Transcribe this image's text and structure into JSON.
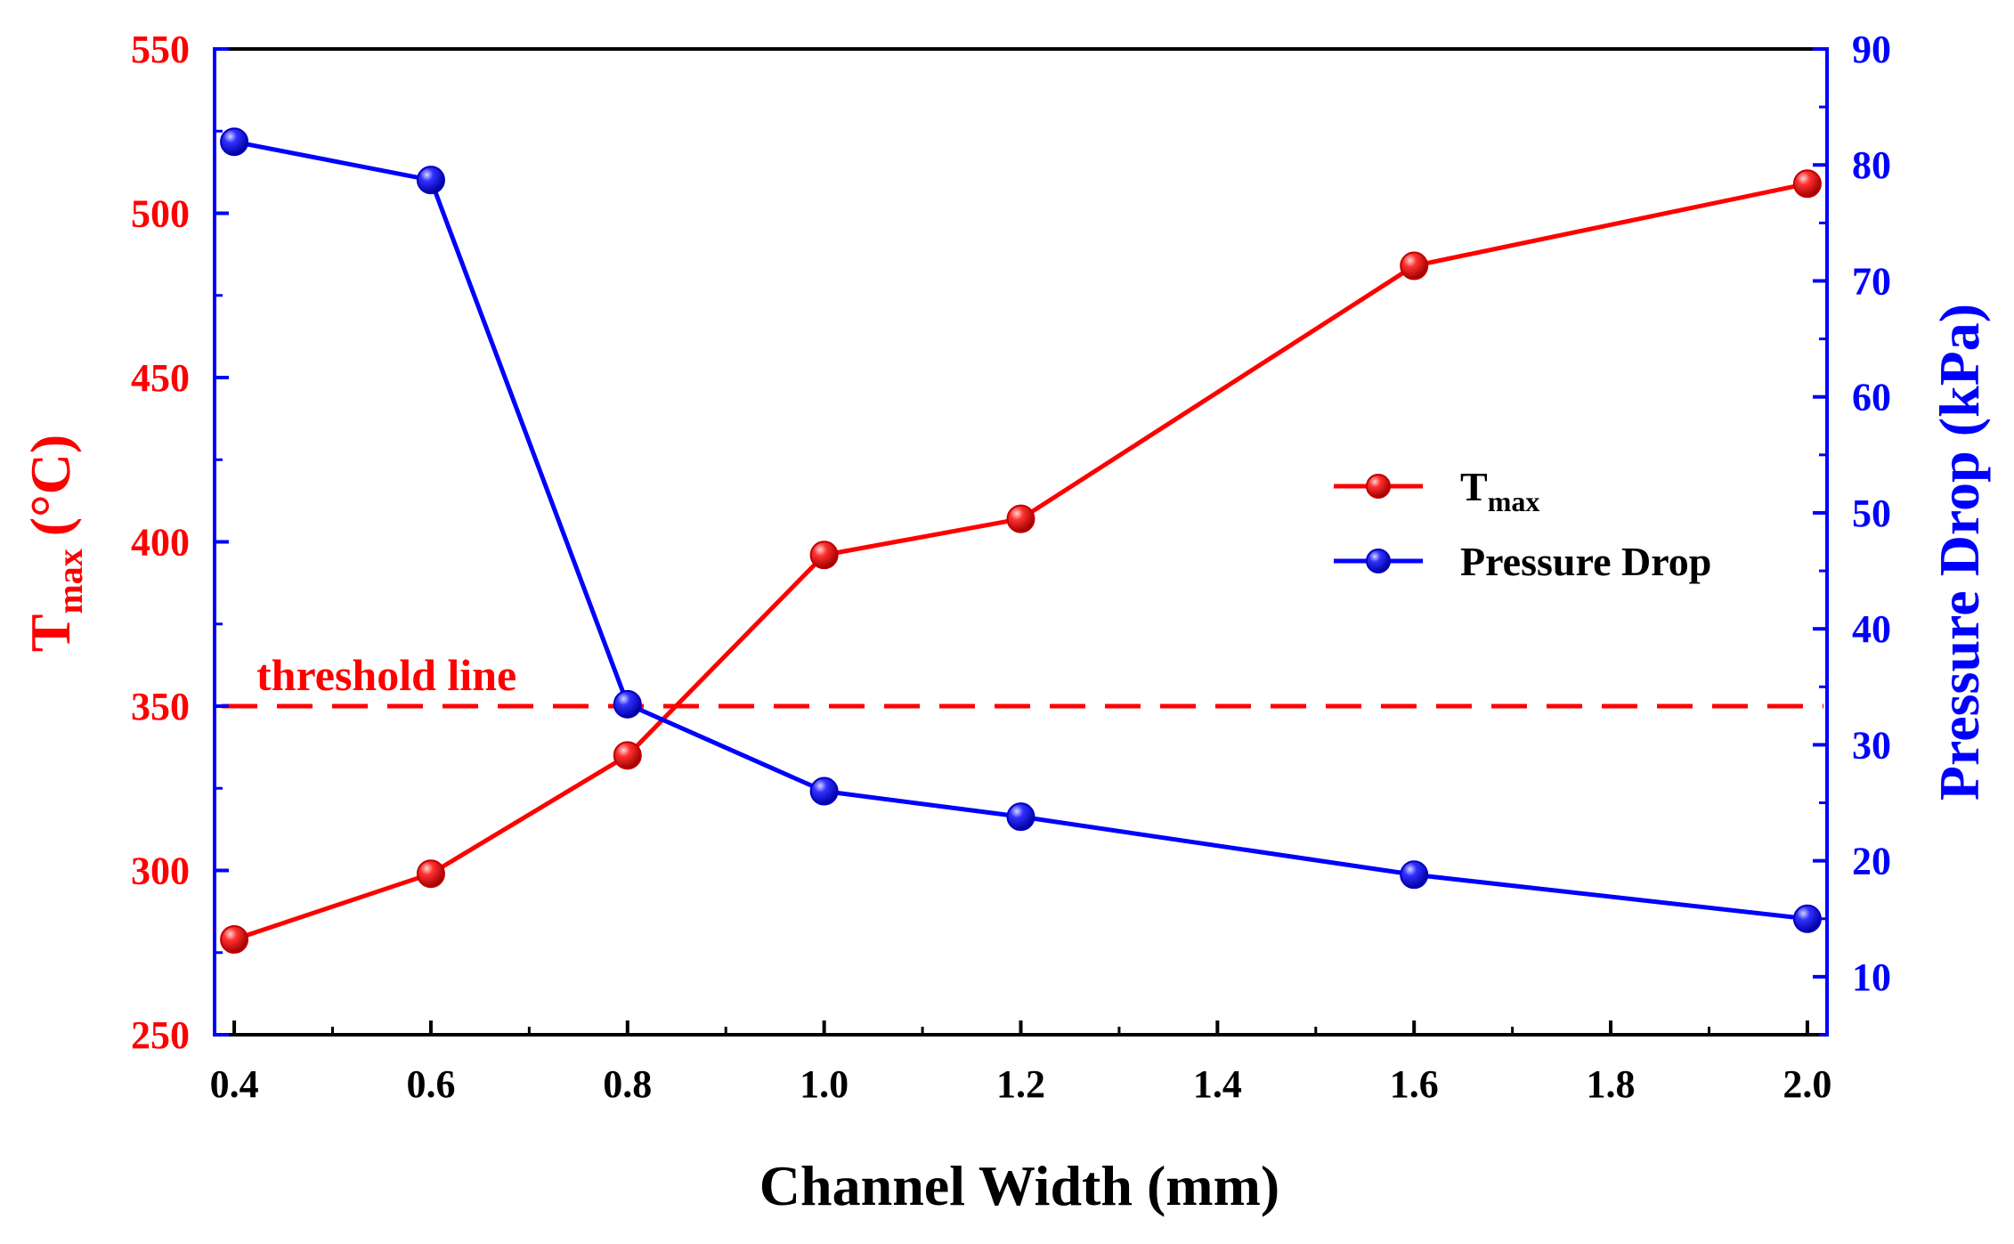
{
  "chart_data": {
    "type": "line",
    "xlabel": "Channel Width (mm)",
    "x_ticks": [
      "0.4",
      "0.6",
      "0.8",
      "1.0",
      "1.2",
      "1.4",
      "1.6",
      "1.8",
      "2.0"
    ],
    "xlim": [
      0.38,
      2.02
    ],
    "left_axis": {
      "label_main": "T",
      "label_sub": "max",
      "label_unit": "(°C)",
      "ylim": [
        250,
        550
      ],
      "ticks": [
        "250",
        "300",
        "350",
        "400",
        "450",
        "500",
        "550"
      ],
      "color": "#ff0000"
    },
    "right_axis": {
      "label": "Pressure Drop (kPa)",
      "ylim": [
        5,
        90
      ],
      "ticks": [
        "10",
        "20",
        "30",
        "40",
        "50",
        "60",
        "70",
        "80",
        "90"
      ],
      "color": "#0000ff"
    },
    "series": [
      {
        "name": "Tmax",
        "legend_main": "T",
        "legend_sub": "max",
        "axis": "left",
        "color": "#ff0000",
        "x": [
          0.4,
          0.6,
          0.8,
          1.0,
          1.2,
          1.6,
          2.0
        ],
        "values": [
          279,
          299,
          335,
          396,
          407,
          484,
          509
        ]
      },
      {
        "name": "Pressure Drop",
        "legend_main": "Pressure Drop",
        "axis": "right",
        "color": "#0000ff",
        "x": [
          0.4,
          0.6,
          0.8,
          1.0,
          1.2,
          1.6,
          2.0
        ],
        "values": [
          82,
          78.7,
          33.5,
          26,
          23.8,
          18.8,
          15
        ]
      }
    ],
    "threshold": {
      "label": "threshold line",
      "value": 350,
      "axis": "left",
      "color": "#ff0000"
    }
  }
}
